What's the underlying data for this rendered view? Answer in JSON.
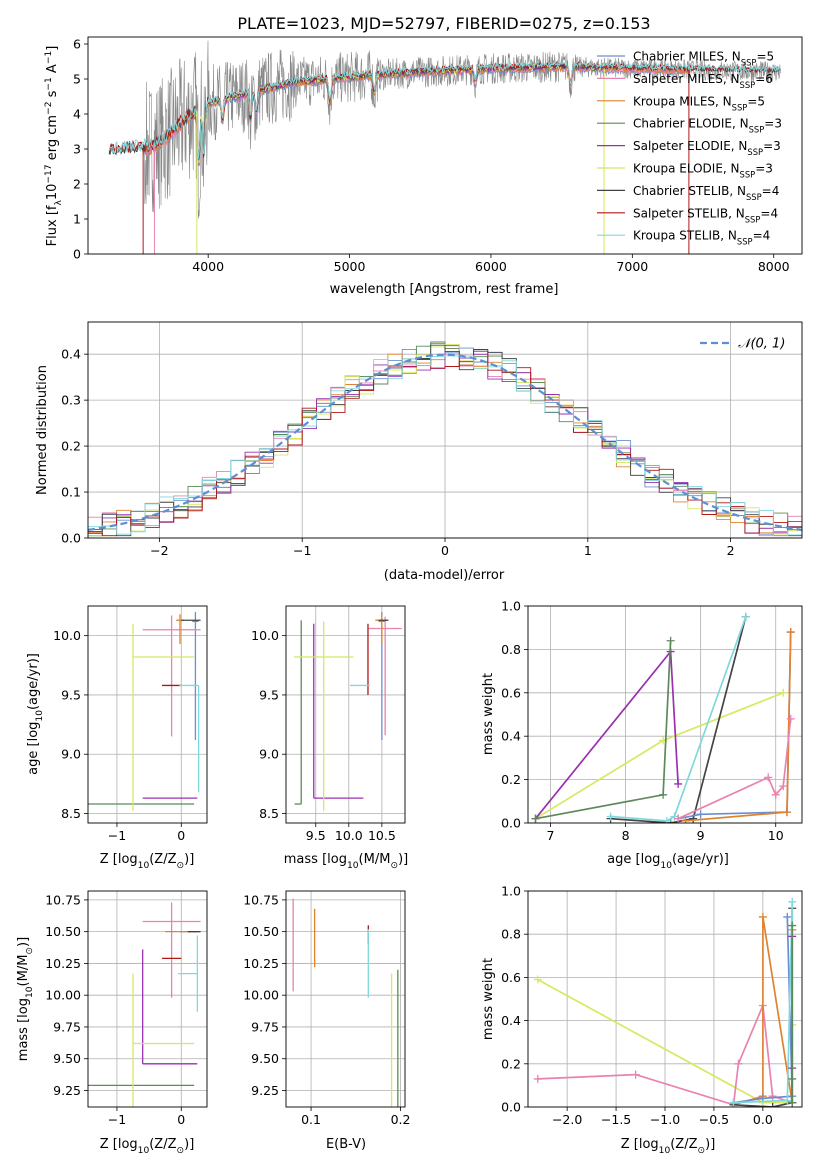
{
  "figure": {
    "title": "PLATE=1023, MJD=52797, FIBERID=0275, z=0.153"
  },
  "colors": {
    "data": "#888888",
    "chabrier_miles": "#6a8fd0",
    "salpeter_miles": "#e882b0",
    "kroupa_miles": "#e0822e",
    "chabrier_elodie": "#5c8a5a",
    "salpeter_elodie": "#9a30b0",
    "kroupa_elodie": "#d8e860",
    "chabrier_stelib": "#444444",
    "salpeter_stelib": "#b01818",
    "kroupa_stelib": "#80d8dc",
    "gaussian": "#5b8fd6"
  },
  "legend": {
    "entries": [
      {
        "label": "Chabrier MILES, N",
        "sub": "SSP",
        "tail": "=5",
        "color": "chabrier_miles"
      },
      {
        "label": "Salpeter MILES, N",
        "sub": "SSP",
        "tail": "=6",
        "color": "salpeter_miles"
      },
      {
        "label": "Kroupa MILES, N",
        "sub": "SSP",
        "tail": "=5",
        "color": "kroupa_miles"
      },
      {
        "label": "Chabrier ELODIE, N",
        "sub": "SSP",
        "tail": "=3",
        "color": "chabrier_elodie"
      },
      {
        "label": "Salpeter ELODIE, N",
        "sub": "SSP",
        "tail": "=3",
        "color": "salpeter_elodie"
      },
      {
        "label": "Kroupa ELODIE, N",
        "sub": "SSP",
        "tail": "=3",
        "color": "kroupa_elodie"
      },
      {
        "label": "Chabrier STELIB, N",
        "sub": "SSP",
        "tail": "=4",
        "color": "chabrier_stelib"
      },
      {
        "label": "Salpeter STELIB, N",
        "sub": "SSP",
        "tail": "=4",
        "color": "salpeter_stelib"
      },
      {
        "label": "Kroupa STELIB, N",
        "sub": "SSP",
        "tail": "=4",
        "color": "kroupa_stelib"
      }
    ]
  },
  "chart_data": [
    {
      "id": "spectrum",
      "type": "line",
      "xlabel": "wavelength [Angstrom, rest frame]",
      "ylabel_parts": [
        "Flux [f",
        "λ",
        "10",
        "−17",
        " erg cm",
        "−2",
        " s",
        "−1",
        " A",
        "−1",
        "]"
      ],
      "xlim": [
        3150,
        8200
      ],
      "ylim": [
        0,
        6.2
      ],
      "xticks": [
        4000,
        5000,
        6000,
        7000,
        8000
      ],
      "yticks": [
        0,
        1,
        2,
        3,
        4,
        5,
        6
      ],
      "grid": false,
      "legend_position": "upper-right",
      "continuum_knots": [
        [
          3300,
          2.95
        ],
        [
          3600,
          3.05
        ],
        [
          3700,
          3.3
        ],
        [
          3850,
          3.9
        ],
        [
          4000,
          4.3
        ],
        [
          4300,
          4.6
        ],
        [
          4600,
          4.9
        ],
        [
          5000,
          5.05
        ],
        [
          5500,
          5.2
        ],
        [
          6000,
          5.3
        ],
        [
          6500,
          5.35
        ],
        [
          7000,
          5.3
        ],
        [
          7500,
          5.25
        ],
        [
          8050,
          5.2
        ]
      ],
      "line_features": [
        [
          3934,
          1.5
        ],
        [
          3969,
          1.4
        ],
        [
          4102,
          0.6
        ],
        [
          4300,
          0.8
        ],
        [
          4340,
          0.6
        ],
        [
          4861,
          0.7
        ],
        [
          5175,
          0.5
        ],
        [
          5890,
          0.4
        ],
        [
          6563,
          0.5
        ]
      ]
    },
    {
      "id": "residuals",
      "type": "histogram",
      "xlabel": "(data-model)/error",
      "ylabel": "Normed distribution",
      "xlim": [
        -2.5,
        2.5
      ],
      "ylim": [
        0,
        0.47
      ],
      "xticks": [
        -2,
        -1,
        0,
        1,
        2
      ],
      "yticks": [
        0.0,
        0.1,
        0.2,
        0.3,
        0.4
      ],
      "grid": true,
      "bin_width": 0.1,
      "legend": {
        "label": "𝒩(0, 1)",
        "position": "upper-right"
      }
    },
    {
      "id": "age_vs_Z",
      "type": "errorbar",
      "xlabel_parts": [
        "Z [log",
        "10",
        "(Z/Z",
        "⊙",
        ")]"
      ],
      "ylabel_parts": [
        "age  [log",
        "10",
        "(age/yr)]"
      ],
      "xlim": [
        -1.45,
        0.4
      ],
      "ylim": [
        8.42,
        10.25
      ],
      "xticks": [
        -1,
        0
      ],
      "yticks": [
        8.5,
        9.0,
        9.5,
        10.0
      ],
      "grid": true,
      "points": [
        {
          "series": "chabrier_miles",
          "x": 0.22,
          "xerr": [
            0.05,
            0.05
          ],
          "y": 10.12,
          "yerr": [
            1.0,
            0.08
          ]
        },
        {
          "series": "salpeter_miles",
          "x": -0.15,
          "xerr": [
            0.45,
            0.45
          ],
          "y": 10.05,
          "yerr": [
            0.9,
            0.12
          ]
        },
        {
          "series": "kroupa_miles",
          "x": -0.02,
          "xerr": [
            0.06,
            0.06
          ],
          "y": 10.13,
          "yerr": [
            0.2,
            0.05
          ]
        },
        {
          "series": "chabrier_elodie",
          "x": -1.45,
          "xerr": [
            0.0,
            1.65
          ],
          "y": 8.58,
          "yerr": [
            0.0,
            0.0
          ]
        },
        {
          "series": "salpeter_elodie",
          "x": -0.6,
          "xerr": [
            0.0,
            0.85
          ],
          "y": 8.63,
          "yerr": [
            0.0,
            0.0
          ]
        },
        {
          "series": "kroupa_elodie",
          "x": -0.75,
          "xerr": [
            0.0,
            0.95
          ],
          "y": 9.82,
          "yerr": [
            1.3,
            0.28
          ]
        },
        {
          "series": "chabrier_stelib",
          "x": 0.0,
          "xerr": [
            0.0,
            0.3
          ],
          "y": 10.13,
          "yerr": [
            0.0,
            0.0
          ]
        },
        {
          "series": "salpeter_stelib",
          "x": -0.3,
          "xerr": [
            0.0,
            0.3
          ],
          "y": 9.58,
          "yerr": [
            0.0,
            0.0
          ]
        },
        {
          "series": "kroupa_stelib",
          "x": 0.27,
          "xerr": [
            0.3,
            0.0
          ],
          "y": 9.58,
          "yerr": [
            0.9,
            0.0
          ]
        }
      ]
    },
    {
      "id": "age_vs_mass",
      "type": "errorbar",
      "xlabel_parts": [
        "mass [log",
        "10",
        "(M/M",
        "⊙",
        ")]"
      ],
      "xlim": [
        9.05,
        10.85
      ],
      "ylim": [
        8.42,
        10.25
      ],
      "xticks": [
        9.5,
        10.0,
        10.5
      ],
      "yticks": [
        8.5,
        9.0,
        9.5,
        10.0
      ],
      "grid": true,
      "points": [
        {
          "series": "chabrier_miles",
          "x": 10.5,
          "xerr": [
            0.05,
            0.05
          ],
          "y": 10.12,
          "yerr": [
            1.0,
            0.08
          ]
        },
        {
          "series": "salpeter_miles",
          "x": 10.55,
          "xerr": [
            0.25,
            0.25
          ],
          "y": 10.06,
          "yerr": [
            0.9,
            0.1
          ]
        },
        {
          "series": "kroupa_miles",
          "x": 10.5,
          "xerr": [
            0.1,
            0.05
          ],
          "y": 10.13,
          "yerr": [
            0.2,
            0.05
          ]
        },
        {
          "series": "chabrier_elodie",
          "x": 9.28,
          "xerr": [
            0.1,
            0.0
          ],
          "y": 8.58,
          "yerr": [
            0.0,
            1.55
          ]
        },
        {
          "series": "salpeter_elodie",
          "x": 9.47,
          "xerr": [
            0.0,
            0.75
          ],
          "y": 8.63,
          "yerr": [
            0.0,
            1.47
          ]
        },
        {
          "series": "kroupa_elodie",
          "x": 9.62,
          "xerr": [
            0.45,
            0.45
          ],
          "y": 9.82,
          "yerr": [
            1.3,
            0.3
          ]
        },
        {
          "series": "chabrier_stelib",
          "x": 10.5,
          "xerr": [
            0.05,
            0.1
          ],
          "y": 10.13,
          "yerr": [
            0.0,
            0.0
          ]
        },
        {
          "series": "salpeter_stelib",
          "x": 10.29,
          "xerr": [
            0.0,
            0.0
          ],
          "y": 9.65,
          "yerr": [
            0.15,
            0.45
          ]
        },
        {
          "series": "kroupa_stelib",
          "x": 10.17,
          "xerr": [
            0.15,
            0.15
          ],
          "y": 9.58,
          "yerr": [
            0.0,
            0.0
          ]
        }
      ]
    },
    {
      "id": "weight_vs_age",
      "type": "line",
      "xlabel_parts": [
        "age  [log",
        "10",
        "(age/yr)]"
      ],
      "ylabel": "mass weight",
      "xlim": [
        6.7,
        10.35
      ],
      "ylim": [
        0,
        1.0
      ],
      "xticks": [
        7,
        8,
        9,
        10
      ],
      "yticks": [
        0.0,
        0.2,
        0.4,
        0.6,
        0.8,
        1.0
      ],
      "grid": true,
      "series": [
        {
          "series": "kroupa_elodie",
          "x": [
            6.8,
            8.5,
            10.1
          ],
          "y": [
            0.02,
            0.38,
            0.6
          ]
        },
        {
          "series": "salpeter_elodie",
          "x": [
            6.8,
            8.6,
            8.7
          ],
          "y": [
            0.02,
            0.79,
            0.18
          ]
        },
        {
          "series": "chabrier_elodie",
          "x": [
            6.8,
            8.5,
            8.6
          ],
          "y": [
            0.02,
            0.13,
            0.84
          ]
        },
        {
          "series": "chabrier_stelib",
          "x": [
            7.8,
            8.6,
            8.9,
            9.6
          ],
          "y": [
            0.02,
            0.0,
            0.02,
            0.95
          ]
        },
        {
          "series": "kroupa_stelib",
          "x": [
            7.8,
            8.55,
            8.65,
            9.6
          ],
          "y": [
            0.03,
            0.01,
            0.03,
            0.95
          ]
        },
        {
          "series": "chabrier_miles",
          "x": [
            8.7,
            9.0,
            10.15,
            10.2
          ],
          "y": [
            0.02,
            0.04,
            0.05,
            0.88
          ]
        },
        {
          "series": "kroupa_miles",
          "x": [
            8.8,
            10.15,
            10.2
          ],
          "y": [
            0.01,
            0.05,
            0.88
          ]
        },
        {
          "series": "salpeter_miles",
          "x": [
            8.7,
            9.9,
            10.0,
            10.1,
            10.2
          ],
          "y": [
            0.02,
            0.21,
            0.13,
            0.17,
            0.48
          ]
        }
      ]
    },
    {
      "id": "mass_vs_Z",
      "type": "errorbar",
      "xlabel_parts": [
        "Z [log",
        "10",
        "(Z/Z",
        "⊙",
        ")]"
      ],
      "ylabel_parts": [
        "mass [log",
        "10",
        "(M/M",
        "⊙",
        ")]"
      ],
      "xlim": [
        -1.45,
        0.4
      ],
      "ylim": [
        9.12,
        10.82
      ],
      "xticks": [
        -1,
        0
      ],
      "yticks": [
        9.25,
        9.5,
        9.75,
        10.0,
        10.25,
        10.5,
        10.75
      ],
      "grid": true,
      "points": [
        {
          "series": "chabrier_miles",
          "x": 0.22,
          "xerr": [
            0.25,
            0.05
          ],
          "y": 10.5,
          "yerr": [
            0.0,
            0.0
          ]
        },
        {
          "series": "salpeter_miles",
          "x": -0.15,
          "xerr": [
            0.45,
            0.45
          ],
          "y": 10.58,
          "yerr": [
            0.6,
            0.15
          ]
        },
        {
          "series": "kroupa_miles",
          "x": 0.0,
          "xerr": [
            0.25,
            0.25
          ],
          "y": 10.5,
          "yerr": [
            0.0,
            0.0
          ]
        },
        {
          "series": "chabrier_elodie",
          "x": -1.45,
          "xerr": [
            0.0,
            1.65
          ],
          "y": 9.29,
          "yerr": [
            0.0,
            0.0
          ]
        },
        {
          "series": "salpeter_elodie",
          "x": -0.6,
          "xerr": [
            0.0,
            0.85
          ],
          "y": 9.46,
          "yerr": [
            0.0,
            0.9
          ]
        },
        {
          "series": "kroupa_elodie",
          "x": -0.75,
          "xerr": [
            0.0,
            0.95
          ],
          "y": 9.62,
          "yerr": [
            0.55,
            0.55
          ]
        },
        {
          "series": "chabrier_stelib",
          "x": 0.1,
          "xerr": [
            0.0,
            0.2
          ],
          "y": 10.5,
          "yerr": [
            0.0,
            0.0
          ]
        },
        {
          "series": "salpeter_stelib",
          "x": -0.3,
          "xerr": [
            0.0,
            0.3
          ],
          "y": 10.29,
          "yerr": [
            0.0,
            0.0
          ]
        },
        {
          "series": "kroupa_stelib",
          "x": 0.25,
          "xerr": [
            0.3,
            0.0
          ],
          "y": 10.17,
          "yerr": [
            0.3,
            0.3
          ]
        }
      ]
    },
    {
      "id": "mass_vs_ebv",
      "type": "errorbar",
      "xlabel": "E(B-V)",
      "xlim": [
        0.072,
        0.205
      ],
      "ylim": [
        9.12,
        10.82
      ],
      "xticks": [
        0.1,
        0.2
      ],
      "yticks": [
        9.25,
        9.5,
        9.75,
        10.0,
        10.25,
        10.5,
        10.75
      ],
      "grid": true,
      "points": [
        {
          "series": "salpeter_miles",
          "x": 0.08,
          "xerr": [
            0.0,
            0.0
          ],
          "y": 10.38,
          "yerr": [
            0.35,
            0.38
          ]
        },
        {
          "series": "kroupa_miles",
          "x": 0.104,
          "xerr": [
            0.0,
            0.0
          ],
          "y": 10.45,
          "yerr": [
            0.23,
            0.23
          ]
        },
        {
          "series": "salpeter_stelib",
          "x": 0.164,
          "xerr": [
            0.0,
            0.0
          ],
          "y": 10.45,
          "yerr": [
            0.05,
            0.1
          ]
        },
        {
          "series": "kroupa_stelib",
          "x": 0.164,
          "xerr": [
            0.0,
            0.0
          ],
          "y": 10.25,
          "yerr": [
            0.27,
            0.27
          ]
        },
        {
          "series": "kroupa_elodie",
          "x": 0.19,
          "xerr": [
            0.0,
            0.0
          ],
          "y": 9.62,
          "yerr": [
            0.5,
            0.55
          ]
        },
        {
          "series": "chabrier_elodie",
          "x": 0.197,
          "xerr": [
            0.0,
            0.0
          ],
          "y": 9.6,
          "yerr": [
            0.5,
            0.6
          ]
        }
      ]
    },
    {
      "id": "weight_vs_Z",
      "type": "line",
      "xlabel_parts": [
        "Z [log",
        "10",
        "(Z/Z",
        "⊙",
        ")]"
      ],
      "ylabel": "mass weight",
      "xlim": [
        -2.4,
        0.4
      ],
      "ylim": [
        0,
        1.0
      ],
      "xticks": [
        -2.0,
        -1.5,
        -1.0,
        -0.5,
        0.0
      ],
      "yticks": [
        0.0,
        0.2,
        0.4,
        0.6,
        0.8,
        1.0
      ],
      "grid": true,
      "series": [
        {
          "series": "kroupa_elodie",
          "x": [
            -2.3,
            0.0,
            0.3,
            0.3
          ],
          "y": [
            0.59,
            0.02,
            0.02,
            0.38
          ]
        },
        {
          "series": "salpeter_miles",
          "x": [
            -2.3,
            -1.3,
            -0.3,
            -0.25,
            0.0,
            0.1,
            0.3
          ],
          "y": [
            0.13,
            0.15,
            0.01,
            0.2,
            0.47,
            0.05,
            0.02
          ]
        },
        {
          "series": "kroupa_miles",
          "x": [
            -0.3,
            0.0,
            0.0,
            0.3,
            0.3
          ],
          "y": [
            0.01,
            0.05,
            0.88,
            0.02,
            0.82
          ]
        },
        {
          "series": "chabrier_miles",
          "x": [
            -0.3,
            0.0,
            0.3,
            0.25
          ],
          "y": [
            0.02,
            0.04,
            0.05,
            0.88
          ]
        },
        {
          "series": "chabrier_stelib",
          "x": [
            -0.3,
            0.1,
            0.3,
            0.3
          ],
          "y": [
            0.01,
            0.0,
            0.02,
            0.92
          ]
        },
        {
          "series": "kroupa_stelib",
          "x": [
            -0.3,
            0.25,
            0.3,
            0.3
          ],
          "y": [
            0.02,
            0.03,
            0.95,
            0.02
          ]
        },
        {
          "series": "salpeter_elodie",
          "x": [
            0.3,
            0.3,
            0.3
          ],
          "y": [
            0.02,
            0.79,
            0.18
          ]
        },
        {
          "series": "chabrier_elodie",
          "x": [
            0.3,
            0.3,
            0.3
          ],
          "y": [
            0.02,
            0.13,
            0.84
          ]
        }
      ]
    }
  ]
}
